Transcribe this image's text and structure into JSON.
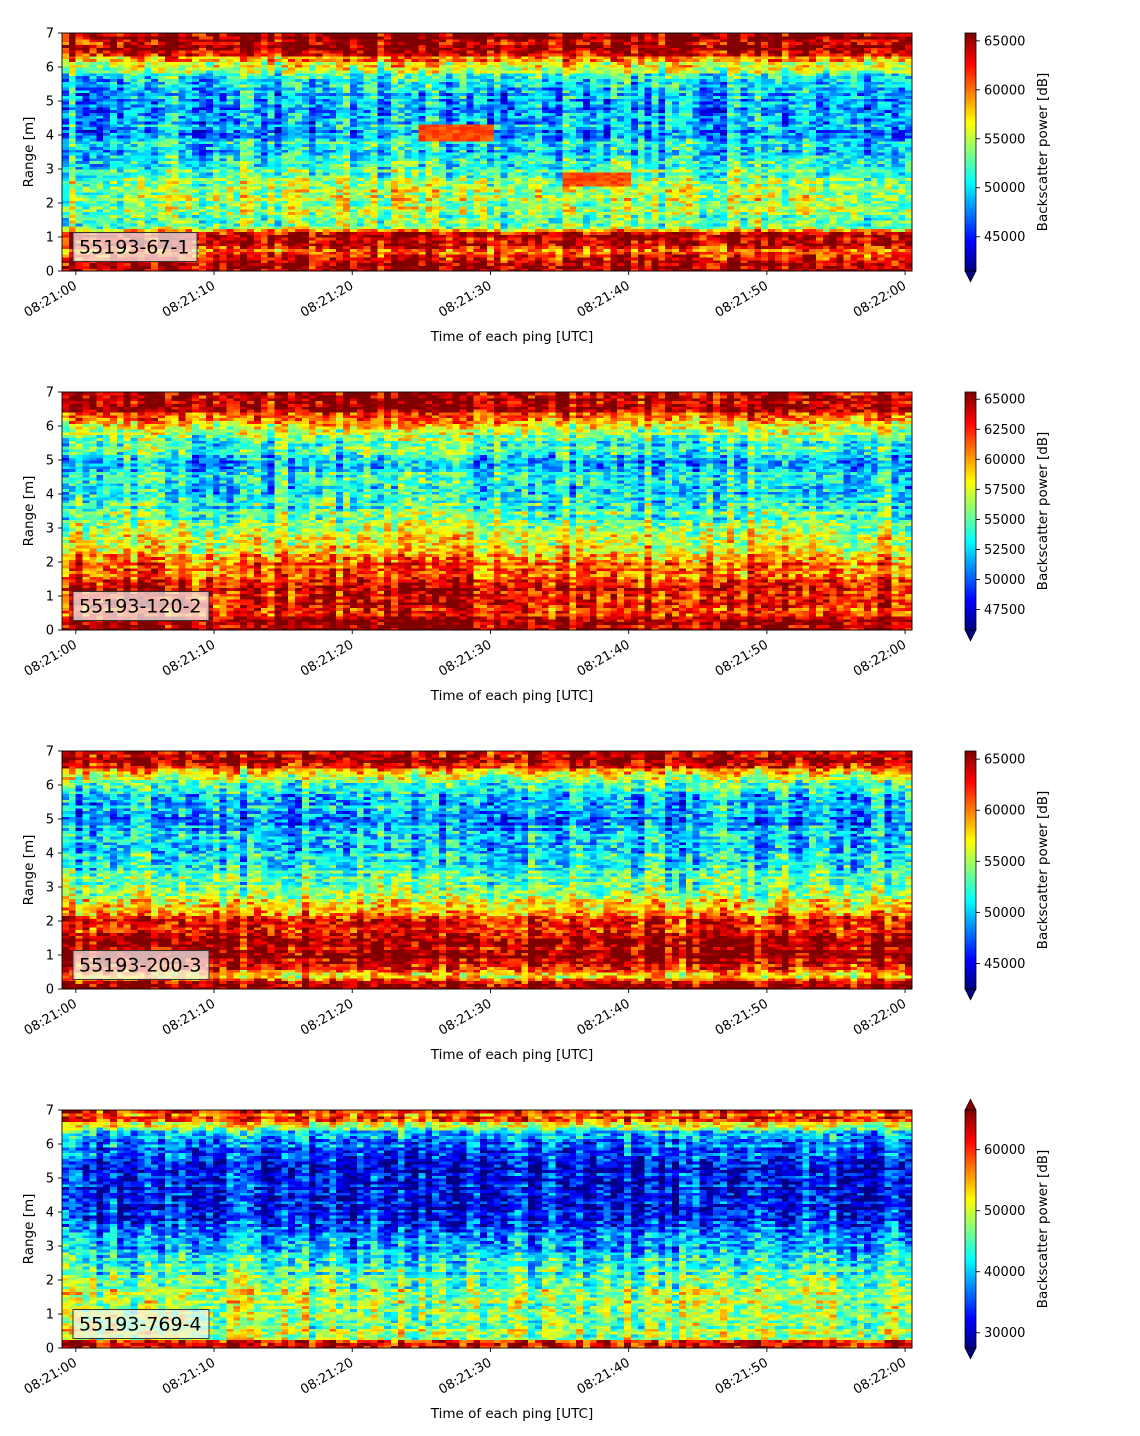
{
  "chart_data": [
    {
      "type": "heatmap",
      "panel_label": "55193-67-1",
      "xlabel": "Time of each ping [UTC]",
      "ylabel": "Range [m]",
      "x_ticks": [
        "08:21:00",
        "08:21:10",
        "08:21:20",
        "08:21:30",
        "08:21:40",
        "08:21:50",
        "08:22:00"
      ],
      "xlim": [
        "08:21:00",
        "08:22:00"
      ],
      "y_ticks": [
        0,
        1,
        2,
        3,
        4,
        5,
        6,
        7
      ],
      "ylim": [
        0,
        7
      ],
      "colormap": "jet",
      "colorbar": {
        "label": "Backscatter power [dB]",
        "ticks": [
          45000,
          50000,
          55000,
          60000,
          65000
        ],
        "range": [
          41500,
          65800
        ],
        "extend": "min"
      },
      "profile": {
        "range_m": [
          0,
          0.25,
          0.6,
          0.8,
          1.1,
          1.3,
          2.0,
          2.6,
          3.0,
          4.0,
          5.0,
          5.6,
          6.1,
          6.5,
          7.0
        ],
        "value": [
          65000,
          65000,
          60000,
          65000,
          65000,
          54000,
          54500,
          55000,
          52500,
          49500,
          48500,
          51000,
          56000,
          65000,
          65000
        ]
      },
      "features": [
        {
          "t0": 25,
          "t1": 30,
          "r0": 3.8,
          "r1": 4.3,
          "value": 61000
        },
        {
          "t0": 35,
          "t1": 40,
          "r0": 2.5,
          "r1": 2.9,
          "value": 61000
        }
      ]
    },
    {
      "type": "heatmap",
      "panel_label": "55193-120-2",
      "xlabel": "Time of each ping [UTC]",
      "ylabel": "Range [m]",
      "x_ticks": [
        "08:21:00",
        "08:21:10",
        "08:21:20",
        "08:21:30",
        "08:21:40",
        "08:21:50",
        "08:22:00"
      ],
      "xlim": [
        "08:21:00",
        "08:22:00"
      ],
      "y_ticks": [
        0,
        1,
        2,
        3,
        4,
        5,
        6,
        7
      ],
      "ylim": [
        0,
        7
      ],
      "colormap": "jet",
      "colorbar": {
        "label": "Backscatter power [dB]",
        "ticks": [
          47500,
          50000,
          52500,
          55000,
          57500,
          60000,
          62500,
          65000
        ],
        "range": [
          45800,
          65600
        ],
        "extend": "min"
      },
      "profile": {
        "range_m": [
          0,
          0.3,
          0.5,
          1.0,
          1.5,
          2.0,
          2.6,
          3.2,
          4.0,
          5.0,
          5.7,
          6.2,
          6.6,
          7.0
        ],
        "value": [
          65000,
          65000,
          63000,
          64000,
          62500,
          61000,
          57500,
          55500,
          53500,
          52500,
          55500,
          60000,
          65000,
          65000
        ]
      },
      "features": []
    },
    {
      "type": "heatmap",
      "panel_label": "55193-200-3",
      "xlabel": "Time of each ping [UTC]",
      "ylabel": "Range [m]",
      "x_ticks": [
        "08:21:00",
        "08:21:10",
        "08:21:20",
        "08:21:30",
        "08:21:40",
        "08:21:50",
        "08:22:00"
      ],
      "xlim": [
        "08:21:00",
        "08:22:00"
      ],
      "y_ticks": [
        0,
        1,
        2,
        3,
        4,
        5,
        6,
        7
      ],
      "ylim": [
        0,
        7
      ],
      "colormap": "jet",
      "colorbar": {
        "label": "Backscatter power [dB]",
        "ticks": [
          45000,
          50000,
          55000,
          60000,
          65000
        ],
        "range": [
          42500,
          65800
        ],
        "extend": "min"
      },
      "profile": {
        "range_m": [
          0,
          0.2,
          0.35,
          0.7,
          1.0,
          1.5,
          2.0,
          2.5,
          3.0,
          4.0,
          5.0,
          5.8,
          6.3,
          6.6,
          7.0
        ],
        "value": [
          65000,
          65000,
          57000,
          63500,
          65000,
          65000,
          62000,
          57500,
          54000,
          51000,
          49000,
          51500,
          56000,
          64000,
          65000
        ]
      },
      "features": []
    },
    {
      "type": "heatmap",
      "panel_label": "55193-769-4",
      "xlabel": "Time of each ping [UTC]",
      "ylabel": "Range [m]",
      "x_ticks": [
        "08:21:00",
        "08:21:10",
        "08:21:20",
        "08:21:30",
        "08:21:40",
        "08:21:50",
        "08:22:00"
      ],
      "xlim": [
        "08:21:00",
        "08:22:00"
      ],
      "y_ticks": [
        0,
        1,
        2,
        3,
        4,
        5,
        6,
        7
      ],
      "ylim": [
        0,
        7
      ],
      "colormap": "jet",
      "colorbar": {
        "label": "Backscatter power [dB]",
        "ticks": [
          30000,
          40000,
          50000,
          60000
        ],
        "range": [
          27500,
          66500
        ],
        "extend": "both"
      },
      "profile": {
        "range_m": [
          0,
          0.15,
          0.3,
          0.45,
          1.0,
          1.5,
          2.0,
          2.6,
          3.2,
          4.0,
          5.0,
          5.8,
          6.4,
          6.7,
          7.0
        ],
        "value": [
          60000,
          66000,
          47000,
          49000,
          48000,
          48500,
          46000,
          42000,
          37500,
          33000,
          31500,
          34000,
          42000,
          58000,
          60000
        ]
      },
      "features": []
    }
  ]
}
